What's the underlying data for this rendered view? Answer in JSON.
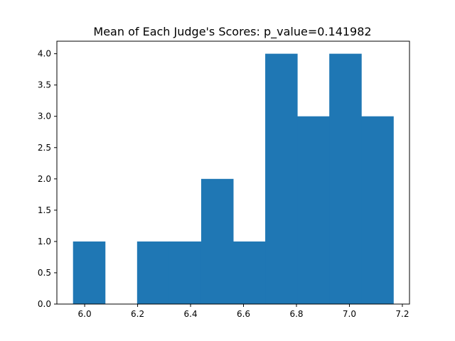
{
  "chart_data": {
    "type": "bar",
    "title": "Mean of Each Judge's Scores: p_value=0.141982",
    "xlabel": "",
    "ylabel": "",
    "histogram": true,
    "bin_edges": [
      5.956,
      6.077,
      6.198,
      6.319,
      6.44,
      6.561,
      6.682,
      6.803,
      6.924,
      7.045,
      7.166
    ],
    "values": [
      1,
      0,
      1,
      1,
      2,
      1,
      4,
      3,
      4,
      3
    ],
    "xlim": [
      5.895,
      7.227
    ],
    "ylim": [
      0,
      4.2
    ],
    "x_ticks": [
      6.0,
      6.2,
      6.4,
      6.6,
      6.8,
      7.0,
      7.2
    ],
    "x_tick_labels": [
      "6.0",
      "6.2",
      "6.4",
      "6.6",
      "6.8",
      "7.0",
      "7.2"
    ],
    "y_ticks": [
      0.0,
      0.5,
      1.0,
      1.5,
      2.0,
      2.5,
      3.0,
      3.5,
      4.0
    ],
    "y_tick_labels": [
      "0.0",
      "0.5",
      "1.0",
      "1.5",
      "2.0",
      "2.5",
      "3.0",
      "3.5",
      "4.0"
    ],
    "bar_color": "#1f77b4",
    "grid": false,
    "legend": "none"
  }
}
